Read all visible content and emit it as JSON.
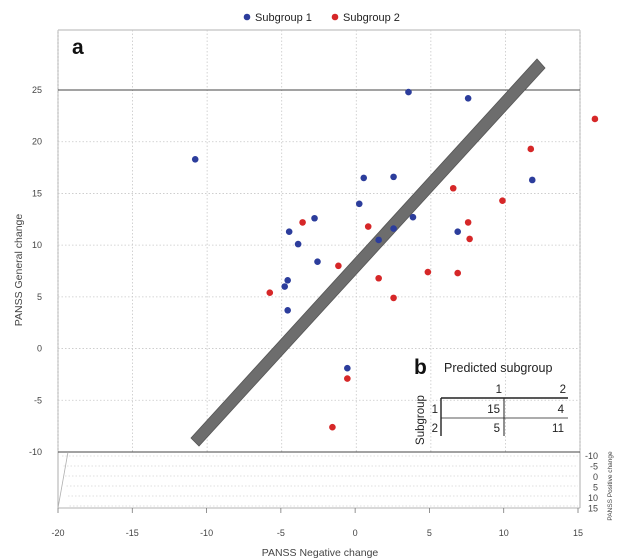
{
  "chart_data": {
    "type": "scatter",
    "panel_label": "a",
    "xlabel": "PANSS Negative change",
    "ylabel": "PANSS General change",
    "zlabel": "PANSS Positive change",
    "xlim": [
      -20,
      15
    ],
    "ylim": [
      -10,
      25
    ],
    "zlim": [
      -10,
      15
    ],
    "x_ticks": [
      "-20",
      "-15",
      "-10",
      "-5",
      "0",
      "5",
      "10",
      "15"
    ],
    "y_ticks": [
      "-10",
      "-5",
      "0",
      "5",
      "10",
      "15",
      "20",
      "25"
    ],
    "z_ticks": [
      "-10",
      "-5",
      "0",
      "5",
      "10",
      "15"
    ],
    "grid": true,
    "legend_position": "top-center",
    "series": [
      {
        "name": "Subgroup 1",
        "color": "#2c3d9c",
        "points": [
          {
            "x": -10.8,
            "y": 18.3
          },
          {
            "x": 3.5,
            "y": 24.8
          },
          {
            "x": 7.5,
            "y": 24.2
          },
          {
            "x": 0.5,
            "y": 16.5
          },
          {
            "x": 2.5,
            "y": 16.6
          },
          {
            "x": 11.8,
            "y": 16.3
          },
          {
            "x": 0.2,
            "y": 14.0
          },
          {
            "x": -2.8,
            "y": 12.6
          },
          {
            "x": 3.8,
            "y": 12.7
          },
          {
            "x": -4.5,
            "y": 11.3
          },
          {
            "x": 2.5,
            "y": 11.6
          },
          {
            "x": 6.8,
            "y": 11.3
          },
          {
            "x": 1.5,
            "y": 10.5
          },
          {
            "x": -3.9,
            "y": 10.1
          },
          {
            "x": -2.6,
            "y": 8.4
          },
          {
            "x": -4.6,
            "y": 6.6
          },
          {
            "x": -4.8,
            "y": 6.0
          },
          {
            "x": -4.6,
            "y": 3.7
          },
          {
            "x": -0.6,
            "y": -1.9
          }
        ]
      },
      {
        "name": "Subgroup 2",
        "color": "#d62728",
        "points": [
          {
            "x": 16.0,
            "y": 22.2
          },
          {
            "x": 11.7,
            "y": 19.3
          },
          {
            "x": 6.5,
            "y": 15.5
          },
          {
            "x": 9.8,
            "y": 14.3
          },
          {
            "x": -3.6,
            "y": 12.2
          },
          {
            "x": 7.5,
            "y": 12.2
          },
          {
            "x": 0.8,
            "y": 11.8
          },
          {
            "x": 7.6,
            "y": 10.6
          },
          {
            "x": -1.2,
            "y": 8.0
          },
          {
            "x": 4.8,
            "y": 7.4
          },
          {
            "x": 6.8,
            "y": 7.3
          },
          {
            "x": 1.5,
            "y": 6.8
          },
          {
            "x": -5.8,
            "y": 5.4
          },
          {
            "x": 2.5,
            "y": 4.9
          },
          {
            "x": -0.6,
            "y": -2.9
          },
          {
            "x": -1.6,
            "y": -7.6
          }
        ]
      }
    ],
    "inset": {
      "panel_label": "b",
      "title": "Predicted subgroup",
      "row_header": "Subgroup",
      "column_labels": [
        "1",
        "2"
      ],
      "rows": [
        {
          "label": "1",
          "values": [
            "15",
            "4"
          ]
        },
        {
          "label": "2",
          "values": [
            "5",
            "11"
          ]
        }
      ]
    }
  }
}
